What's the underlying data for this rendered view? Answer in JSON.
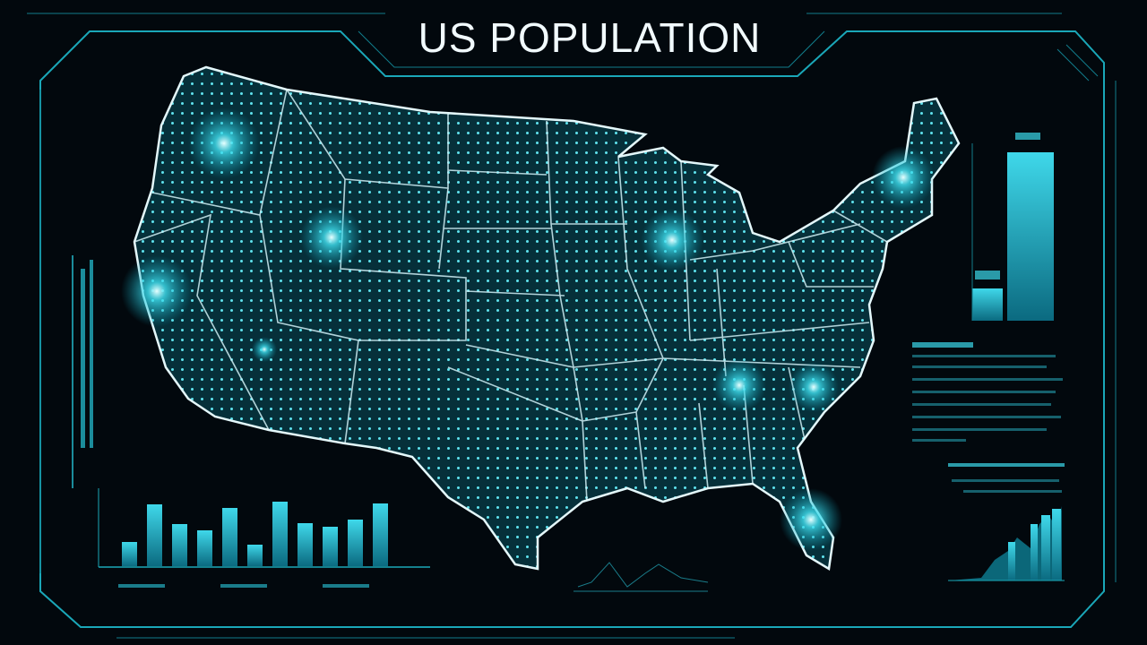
{
  "header": {
    "title": "US POPULATION"
  }
}
